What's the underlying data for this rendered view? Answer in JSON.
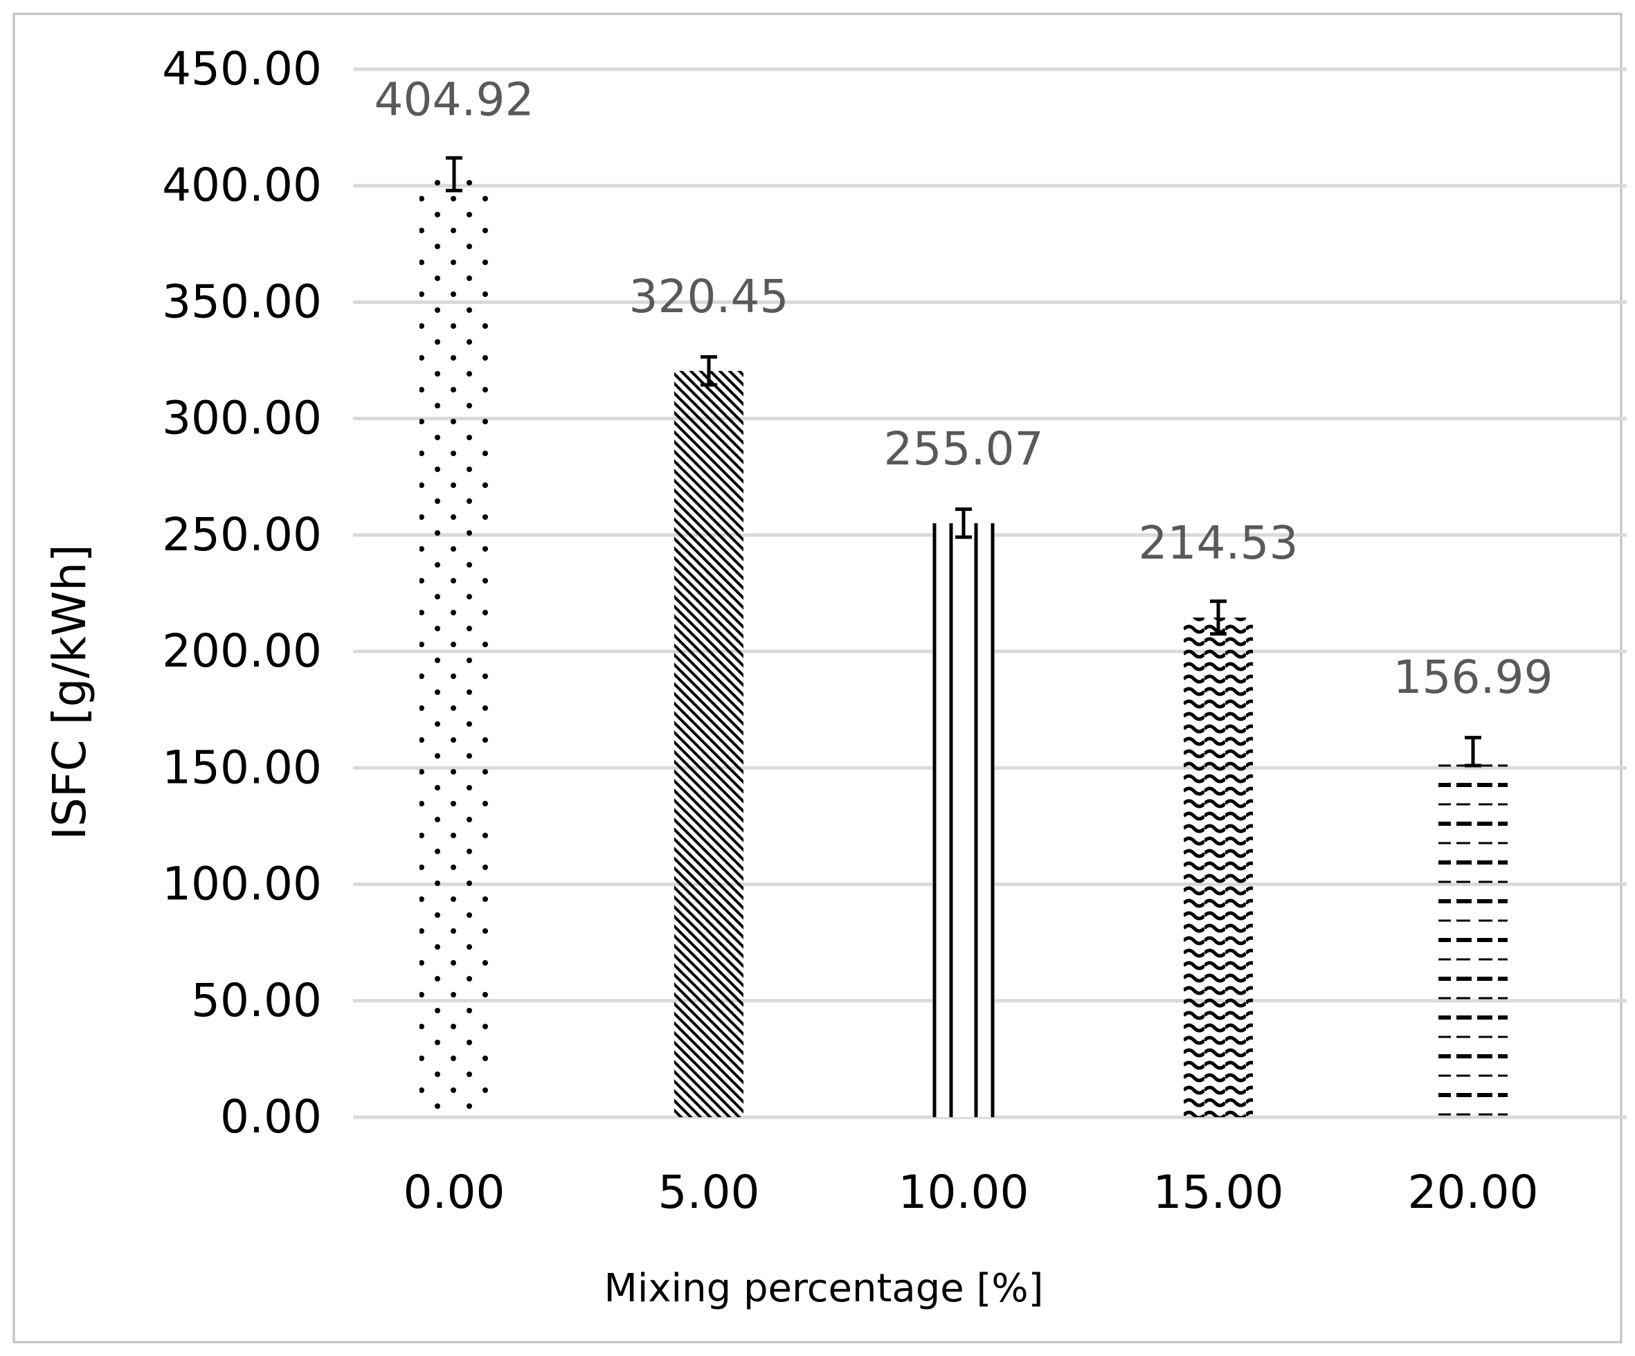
{
  "chart_data": {
    "type": "bar",
    "categories": [
      "0.00",
      "5.00",
      "10.00",
      "15.00",
      "20.00"
    ],
    "values": [
      404.92,
      320.45,
      255.07,
      214.53,
      156.99
    ],
    "data_labels": [
      "404.92",
      "320.45",
      "255.07",
      "214.53",
      "156.99"
    ],
    "error_bars": [
      7,
      6,
      6,
      7,
      6
    ],
    "title": "",
    "xlabel": "Mixing percentage [%]",
    "ylabel": "ISFC [g/kWh]",
    "ylim": [
      0,
      450
    ],
    "y_ticks": [
      "0.00",
      "50.00",
      "100.00",
      "150.00",
      "200.00",
      "250.00",
      "300.00",
      "350.00",
      "400.00",
      "450.00"
    ],
    "grid": true,
    "legend": "none",
    "bar_patterns": [
      "dots",
      "diagonal-stripes",
      "vertical-lines",
      "waves",
      "dashes"
    ],
    "colors": {
      "bars": "#000000",
      "grid": "#d9d9d9",
      "data_label": "#595959",
      "frame": "#bfbfbf"
    }
  }
}
